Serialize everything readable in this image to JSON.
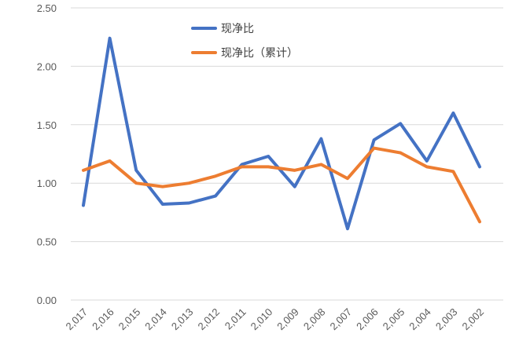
{
  "chart_data": {
    "type": "line",
    "title": "",
    "xlabel": "",
    "ylabel": "",
    "ylim": [
      0,
      2.5
    ],
    "yticks": [
      "0.00",
      "0.50",
      "1.00",
      "1.50",
      "2.00",
      "2.50"
    ],
    "ytick_values": [
      0,
      0.5,
      1.0,
      1.5,
      2.0,
      2.5
    ],
    "grid": true,
    "legend_position": "top-center",
    "categories": [
      "2,017",
      "2,016",
      "2,015",
      "2,014",
      "2,013",
      "2,012",
      "2,011",
      "2,010",
      "2,009",
      "2,008",
      "2,007",
      "2,006",
      "2,005",
      "2,004",
      "2,003",
      "2,002"
    ],
    "series": [
      {
        "name": "现净比",
        "color": "#4472C4",
        "values": [
          0.81,
          2.24,
          1.11,
          0.82,
          0.83,
          0.89,
          1.16,
          1.23,
          0.97,
          1.38,
          0.61,
          1.37,
          1.51,
          1.19,
          1.6,
          1.14
        ]
      },
      {
        "name": "现净比（累计）",
        "color": "#ED7D31",
        "values": [
          1.11,
          1.19,
          1.0,
          0.97,
          1.0,
          1.06,
          1.14,
          1.14,
          1.11,
          1.16,
          1.04,
          1.3,
          1.26,
          1.14,
          1.1,
          0.67
        ]
      }
    ]
  }
}
